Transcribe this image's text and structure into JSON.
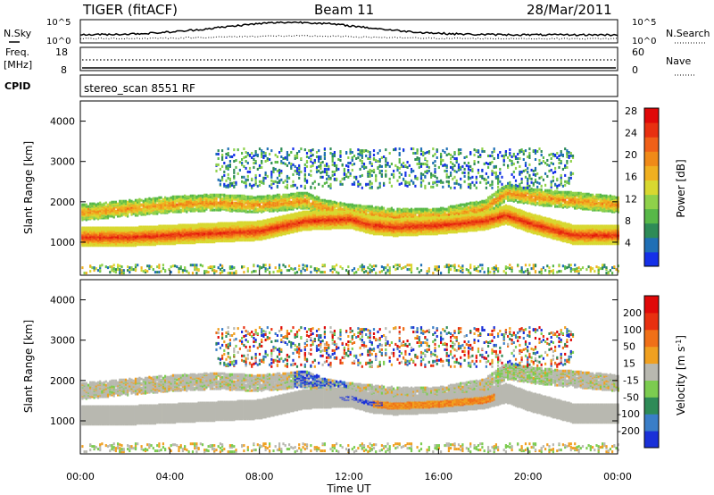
{
  "header": {
    "station": "TIGER (fitACF)",
    "beam": "Beam 11",
    "date": "28/Mar/2011",
    "cpid_label": "CPID",
    "cpid_value": "stereo_scan 8551 RF"
  },
  "aux_panels": {
    "nsky": {
      "left_label": "N.Sky",
      "right_label": "N.Search",
      "left_ticks": [
        "10^5",
        "10^0"
      ],
      "right_ticks": [
        "10^5",
        "10^0"
      ]
    },
    "freq": {
      "left_label_line1": "Freq.",
      "left_label_line2": "[MHz]",
      "right_label": "Nave",
      "left_ticks": [
        "18",
        "8"
      ],
      "right_ticks": [
        "60",
        "0"
      ]
    }
  },
  "chart_data": [
    {
      "type": "heatmap",
      "title": "Power",
      "ylabel": "Slant Range [km]",
      "xlabel": "Time UT",
      "x_ticks": [
        "00:00",
        "04:00",
        "08:00",
        "12:00",
        "16:00",
        "20:00",
        "00:00"
      ],
      "ylim": [
        180,
        4500
      ],
      "y_ticks": [
        1000,
        2000,
        3000,
        4000
      ],
      "colorbar": {
        "label": "Power [dB]",
        "ticks": [
          "4",
          "8",
          "12",
          "16",
          "20",
          "24",
          "28"
        ],
        "colors": [
          "#1530e8",
          "#1f6fb5",
          "#2e8b57",
          "#58b848",
          "#8fd14a",
          "#d8d830",
          "#f0b020",
          "#f08a18",
          "#f06018",
          "#e83010",
          "#e00808"
        ]
      },
      "series": [
        {
          "name": "main-band-center-km",
          "x_hours": [
            0,
            2,
            4,
            6,
            8,
            10,
            12,
            13,
            14,
            16,
            18,
            19,
            20,
            22,
            24
          ],
          "values": [
            1100,
            1100,
            1150,
            1200,
            1250,
            1500,
            1550,
            1400,
            1350,
            1400,
            1500,
            1650,
            1450,
            1150,
            1150
          ]
        },
        {
          "name": "upper-band-center-km",
          "x_hours": [
            0,
            2,
            4,
            6,
            8,
            10,
            11,
            12,
            14,
            16,
            18,
            19,
            20,
            22,
            24
          ],
          "values": [
            1700,
            1800,
            1900,
            1950,
            1900,
            2000,
            1800,
            1700,
            1600,
            1600,
            1800,
            2200,
            2100,
            2000,
            1900
          ]
        }
      ]
    },
    {
      "type": "heatmap",
      "title": "Velocity",
      "ylabel": "Slant Range [km]",
      "xlabel": "Time UT",
      "x_ticks": [
        "00:00",
        "04:00",
        "08:00",
        "12:00",
        "16:00",
        "20:00",
        "00:00"
      ],
      "ylim": [
        180,
        4500
      ],
      "y_ticks": [
        1000,
        2000,
        3000,
        4000
      ],
      "colorbar": {
        "label": "Velocity [m s^-1]",
        "ticks": [
          "200",
          "100",
          "50",
          "15",
          "-15",
          "-50",
          "-100",
          "-200"
        ],
        "colors": [
          "#1a30d8",
          "#3a7ec8",
          "#2e8b57",
          "#7ccc50",
          "#b8b8b0",
          "#f0a020",
          "#f07018",
          "#e83010",
          "#e00808"
        ]
      }
    }
  ],
  "colors": {
    "background": "#ffffff",
    "axis": "#000000",
    "ground_scatter": "#b8b8b0"
  }
}
